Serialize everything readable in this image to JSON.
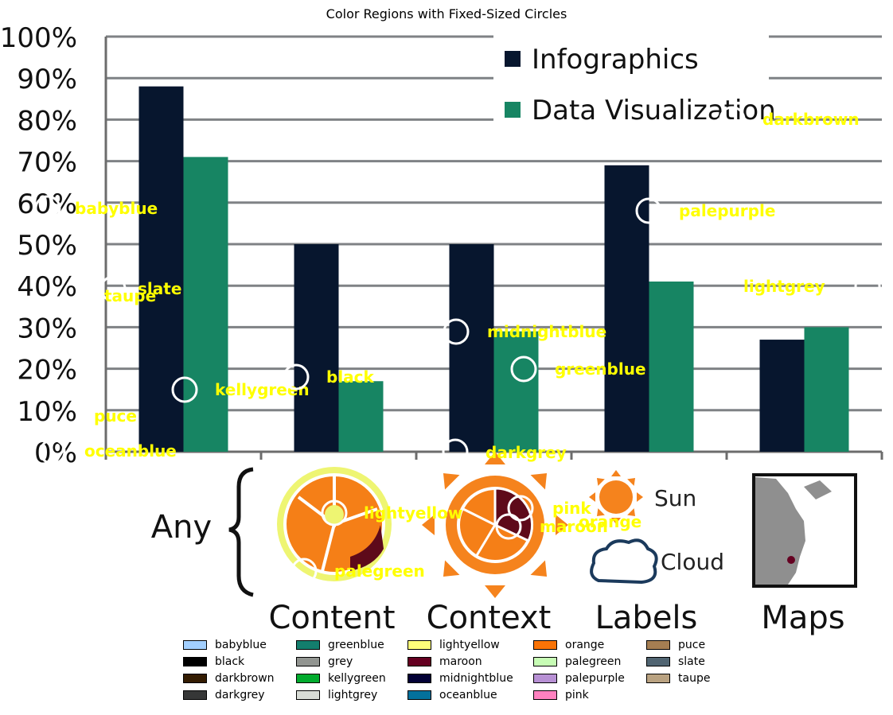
{
  "title": "Color Regions with Fixed-Sized Circles",
  "chart_data": {
    "type": "bar",
    "title": "Color Regions with Fixed-Sized Circles",
    "categories": [
      "Any",
      "Content",
      "Context",
      "Labels",
      "Maps"
    ],
    "series": [
      {
        "name": "Infographics",
        "color": "#07162e",
        "values": [
          88,
          50,
          50,
          69,
          27
        ]
      },
      {
        "name": "Data Visualization",
        "color": "#178563",
        "values": [
          71,
          17,
          29,
          41,
          30
        ]
      }
    ],
    "ylim": [
      0,
      100
    ],
    "yticks": [
      "0%",
      "10%",
      "20%",
      "30%",
      "40%",
      "50%",
      "60%",
      "70%",
      "80%",
      "90%",
      "100%"
    ],
    "grid": true,
    "legend_position": "top-right",
    "icon_labels": [
      "Sun",
      "Cloud"
    ],
    "overlay_labels": [
      {
        "name": "babyblue"
      },
      {
        "name": "slate"
      },
      {
        "name": "taupe"
      },
      {
        "name": "kellygreen"
      },
      {
        "name": "black"
      },
      {
        "name": "puce"
      },
      {
        "name": "oceanblue"
      },
      {
        "name": "midnightblue"
      },
      {
        "name": "greenblue"
      },
      {
        "name": "darkgrey"
      },
      {
        "name": "palepurple"
      },
      {
        "name": "lightgrey"
      },
      {
        "name": "darkbrown"
      },
      {
        "name": "lightyellow"
      },
      {
        "name": "palegreen"
      },
      {
        "name": "pink"
      },
      {
        "name": "maroon"
      },
      {
        "name": "orange"
      }
    ]
  },
  "legend": [
    {
      "label": "babyblue",
      "color": "#a2cffe"
    },
    {
      "label": "black",
      "color": "#000000"
    },
    {
      "label": "darkbrown",
      "color": "#341c02"
    },
    {
      "label": "darkgrey",
      "color": "#363737"
    },
    {
      "label": "greenblue",
      "color": "#137e6d"
    },
    {
      "label": "grey",
      "color": "#929591"
    },
    {
      "label": "kellygreen",
      "color": "#02ab2e"
    },
    {
      "label": "lightgrey",
      "color": "#d8dcd6"
    },
    {
      "label": "lightyellow",
      "color": "#fffe7a"
    },
    {
      "label": "maroon",
      "color": "#650021"
    },
    {
      "label": "midnightblue",
      "color": "#020035"
    },
    {
      "label": "oceanblue",
      "color": "#03719c"
    },
    {
      "label": "orange",
      "color": "#f97306"
    },
    {
      "label": "palegreen",
      "color": "#c7fdb5"
    },
    {
      "label": "palepurple",
      "color": "#b790d4"
    },
    {
      "label": "pink",
      "color": "#ff81c0"
    },
    {
      "label": "puce",
      "color": "#a57e52"
    },
    {
      "label": "slate",
      "color": "#516572"
    },
    {
      "label": "taupe",
      "color": "#b9a281"
    }
  ]
}
